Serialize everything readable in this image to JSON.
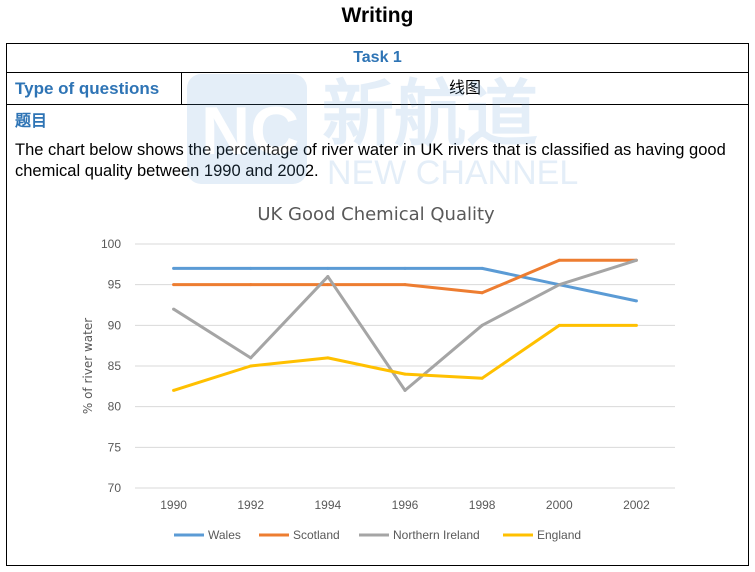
{
  "header": {
    "title": "Writing"
  },
  "table": {
    "task_label": "Task 1",
    "type_label": "Type of questions",
    "type_value": "线图",
    "section_label": "题目",
    "prompt": "The chart below shows the percentage of river water in UK rivers that is classified as having good chemical quality between 1990 and 2002."
  },
  "watermark": {
    "text_cn": "新航道",
    "text_en": "NEW CHANNEL",
    "logo": "NC"
  },
  "colors": {
    "accent": "#2e74b5",
    "Wales": "#5b9bd5",
    "Scotland": "#ed7d31",
    "Northern Ireland": "#a5a5a5",
    "England": "#ffc000"
  },
  "chart_data": {
    "type": "line",
    "title": "UK Good Chemical Quality",
    "xlabel": "",
    "ylabel": "% of river water",
    "x": [
      "1990",
      "1992",
      "1994",
      "1996",
      "1998",
      "2000",
      "2002"
    ],
    "ylim": [
      70,
      100
    ],
    "yticks": [
      70,
      75,
      80,
      85,
      90,
      95,
      100
    ],
    "grid": true,
    "legend": "bottom",
    "series": [
      {
        "name": "Wales",
        "values": [
          97,
          97,
          97,
          97,
          97,
          95,
          93
        ]
      },
      {
        "name": "Scotland",
        "values": [
          95,
          95,
          95,
          95,
          94,
          98,
          98
        ]
      },
      {
        "name": "Northern Ireland",
        "values": [
          92,
          86,
          96,
          82,
          90,
          95,
          98
        ]
      },
      {
        "name": "England",
        "values": [
          82,
          85,
          86,
          84,
          83.5,
          90,
          90
        ]
      }
    ]
  }
}
